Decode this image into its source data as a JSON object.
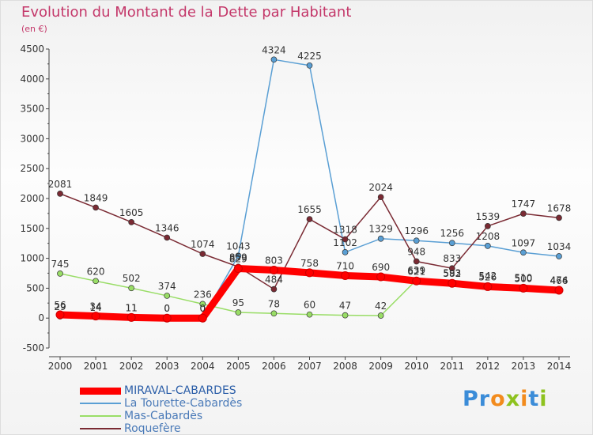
{
  "title": "Evolution du Montant de la Dette par Habitant",
  "subtitle": "(en €)",
  "brand": "Proxiti",
  "chart_data": {
    "type": "line",
    "title": "Evolution du Montant de la Dette par Habitant",
    "subtitle": "(en €)",
    "x": [
      "2000",
      "2001",
      "2002",
      "2003",
      "2004",
      "2005",
      "2006",
      "2007",
      "2008",
      "2009",
      "2010",
      "2011",
      "2012",
      "2013",
      "2014"
    ],
    "ylim": [
      -500,
      4500
    ],
    "yticks": [
      -500,
      0,
      500,
      1000,
      1500,
      2000,
      2500,
      3000,
      3500,
      4000,
      4500
    ],
    "grid": false,
    "legend_position": "bottom-left",
    "series": [
      {
        "name": "MIRAVAL-CABARDES",
        "color": "#ff0000",
        "emphasis": true,
        "values": [
          56,
          34,
          11,
          0,
          0,
          829,
          803,
          758,
          710,
          690,
          621,
          582,
          526,
          500,
          466
        ]
      },
      {
        "name": "La Tourette-Cabardès",
        "color": "#5a9fd4",
        "values": [
          29,
          14,
          11,
          0,
          0,
          1043,
          4324,
          4225,
          1102,
          1329,
          1296,
          1256,
          1208,
          1097,
          1034
        ]
      },
      {
        "name": "Mas-Cabardès",
        "color": "#99dd66",
        "values": [
          745,
          620,
          502,
          374,
          236,
          95,
          78,
          60,
          47,
          42,
          639,
          593,
          542,
          510,
          474
        ]
      },
      {
        "name": "Roquefère",
        "color": "#7a2a33",
        "values": [
          2081,
          1849,
          1605,
          1346,
          1074,
          859,
          484,
          1655,
          1318,
          2024,
          948,
          833,
          1539,
          1747,
          1678
        ]
      }
    ]
  }
}
